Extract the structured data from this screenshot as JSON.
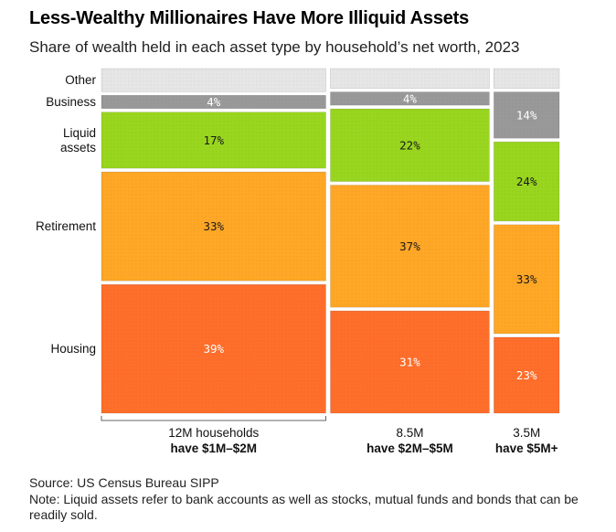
{
  "header": {
    "title": "Less-Wealthy Millionaires Have More Illiquid Assets",
    "subtitle": "Share of wealth held in each asset type by household’s net worth, 2023"
  },
  "footer": {
    "source": "Source: US Census Bureau SIPP",
    "note": "Note: Liquid assets refer to bank accounts as well as stocks, mutual funds and bonds that can be readily sold."
  },
  "colors": {
    "Other": "#e6e6e6",
    "Business": "#999999",
    "Liquid assets": "#99d61f",
    "Retirement": "#ffa726",
    "Housing": "#ff6e2b"
  },
  "chart_data": {
    "type": "marimekko",
    "title": "Less-Wealthy Millionaires Have More Illiquid Assets",
    "subtitle": "Share of wealth held in each asset type by household’s net worth, 2023",
    "categories": [
      {
        "name": "12M households have $1M–$2M",
        "households_millions": 12,
        "line1": "12M households",
        "line2": "have $1M–$2M"
      },
      {
        "name": "8.5M have $2M–$5M",
        "households_millions": 8.5,
        "line1": "8.5M",
        "line2": "have $2M–$5M"
      },
      {
        "name": "3.5M have $5M+",
        "households_millions": 3.5,
        "line1": "3.5M",
        "line2": "have $5M+"
      }
    ],
    "series": [
      {
        "name": "Housing",
        "row_label": "Housing",
        "values": [
          39,
          31,
          23
        ],
        "labels": [
          "39%",
          "31%",
          "23%"
        ]
      },
      {
        "name": "Retirement",
        "row_label": "Retirement",
        "values": [
          33,
          37,
          33
        ],
        "labels": [
          "33%",
          "37%",
          "33%"
        ]
      },
      {
        "name": "Liquid assets",
        "row_label": "Liquid\nassets",
        "values": [
          17,
          22,
          24
        ],
        "labels": [
          "17%",
          "22%",
          "24%"
        ]
      },
      {
        "name": "Business",
        "row_label": "Business",
        "values": [
          4,
          4,
          14
        ],
        "labels": [
          "4%",
          "4%",
          "14%"
        ]
      },
      {
        "name": "Other",
        "row_label": "Other",
        "values": [
          7,
          6,
          6
        ],
        "labels": [
          "",
          "",
          ""
        ]
      }
    ]
  }
}
